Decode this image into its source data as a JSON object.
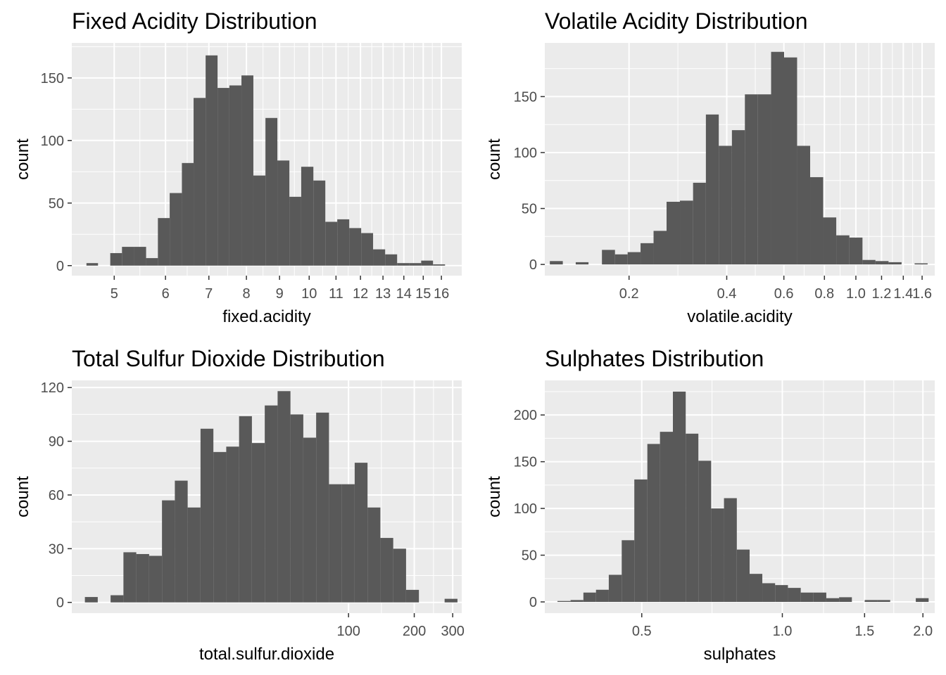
{
  "chart_data": [
    {
      "type": "bar",
      "title": "Fixed Acidity Distribution",
      "xlabel": "fixed.acidity",
      "ylabel": "count",
      "x_scale": "log10",
      "grid": true,
      "xlim": [
        4.3,
        17.2
      ],
      "ylim": [
        -8,
        178
      ],
      "x_ticks": [
        5,
        6,
        7,
        8,
        9,
        10,
        11,
        12,
        13,
        14,
        15,
        16
      ],
      "x_tick_labels": [
        "5",
        "6",
        "7",
        "8",
        "9",
        "10",
        "11",
        "12",
        "13",
        "14",
        "15",
        "16"
      ],
      "y_ticks": [
        0,
        50,
        100,
        150
      ],
      "y_tick_labels": [
        "0",
        "50",
        "100",
        "150"
      ],
      "bins": [
        {
          "x0": 4.53,
          "x1": 4.72,
          "count": 2
        },
        {
          "x0": 4.72,
          "x1": 4.93,
          "count": 0
        },
        {
          "x0": 4.93,
          "x1": 5.14,
          "count": 10
        },
        {
          "x0": 5.14,
          "x1": 5.36,
          "count": 15
        },
        {
          "x0": 5.36,
          "x1": 5.6,
          "count": 15
        },
        {
          "x0": 5.6,
          "x1": 5.84,
          "count": 6
        },
        {
          "x0": 5.84,
          "x1": 6.09,
          "count": 38
        },
        {
          "x0": 6.09,
          "x1": 6.36,
          "count": 58
        },
        {
          "x0": 6.36,
          "x1": 6.63,
          "count": 82
        },
        {
          "x0": 6.63,
          "x1": 6.92,
          "count": 134
        },
        {
          "x0": 6.92,
          "x1": 7.22,
          "count": 168
        },
        {
          "x0": 7.22,
          "x1": 7.53,
          "count": 142
        },
        {
          "x0": 7.53,
          "x1": 7.86,
          "count": 144
        },
        {
          "x0": 7.86,
          "x1": 8.2,
          "count": 152
        },
        {
          "x0": 8.2,
          "x1": 8.56,
          "count": 72
        },
        {
          "x0": 8.56,
          "x1": 8.93,
          "count": 118
        },
        {
          "x0": 8.93,
          "x1": 9.32,
          "count": 84
        },
        {
          "x0": 9.32,
          "x1": 9.72,
          "count": 55
        },
        {
          "x0": 9.72,
          "x1": 10.15,
          "count": 79
        },
        {
          "x0": 10.15,
          "x1": 10.59,
          "count": 68
        },
        {
          "x0": 10.59,
          "x1": 11.05,
          "count": 35
        },
        {
          "x0": 11.05,
          "x1": 11.53,
          "count": 37
        },
        {
          "x0": 11.53,
          "x1": 12.03,
          "count": 30
        },
        {
          "x0": 12.03,
          "x1": 12.55,
          "count": 26
        },
        {
          "x0": 12.55,
          "x1": 13.1,
          "count": 13
        },
        {
          "x0": 13.1,
          "x1": 13.67,
          "count": 9
        },
        {
          "x0": 13.67,
          "x1": 14.27,
          "count": 2
        },
        {
          "x0": 14.27,
          "x1": 14.89,
          "count": 2
        },
        {
          "x0": 14.89,
          "x1": 15.53,
          "count": 4
        },
        {
          "x0": 15.53,
          "x1": 16.21,
          "count": 1
        }
      ]
    },
    {
      "type": "bar",
      "title": "Volatile Acidity Distribution",
      "xlabel": "volatile.acidity",
      "ylabel": "count",
      "x_scale": "log10",
      "grid": true,
      "xlim": [
        0.11,
        1.75
      ],
      "ylim": [
        -10,
        198
      ],
      "x_ticks": [
        0.2,
        0.4,
        0.6,
        0.8,
        1.0,
        1.2,
        1.4,
        1.6
      ],
      "x_tick_labels": [
        "0.2",
        "0.4",
        "0.6",
        "0.8",
        "1.0",
        "1.2",
        "1.4",
        "1.6"
      ],
      "y_ticks": [
        0,
        50,
        100,
        150
      ],
      "y_tick_labels": [
        "0",
        "50",
        "100",
        "150"
      ],
      "bins": [
        {
          "x0": 0.114,
          "x1": 0.125,
          "count": 3
        },
        {
          "x0": 0.125,
          "x1": 0.137,
          "count": 0
        },
        {
          "x0": 0.137,
          "x1": 0.15,
          "count": 2
        },
        {
          "x0": 0.15,
          "x1": 0.165,
          "count": 0
        },
        {
          "x0": 0.165,
          "x1": 0.181,
          "count": 13
        },
        {
          "x0": 0.181,
          "x1": 0.198,
          "count": 9
        },
        {
          "x0": 0.198,
          "x1": 0.217,
          "count": 11
        },
        {
          "x0": 0.217,
          "x1": 0.238,
          "count": 19
        },
        {
          "x0": 0.238,
          "x1": 0.261,
          "count": 30
        },
        {
          "x0": 0.261,
          "x1": 0.287,
          "count": 56
        },
        {
          "x0": 0.287,
          "x1": 0.315,
          "count": 57
        },
        {
          "x0": 0.315,
          "x1": 0.345,
          "count": 73
        },
        {
          "x0": 0.345,
          "x1": 0.378,
          "count": 134
        },
        {
          "x0": 0.378,
          "x1": 0.415,
          "count": 106
        },
        {
          "x0": 0.415,
          "x1": 0.455,
          "count": 120
        },
        {
          "x0": 0.455,
          "x1": 0.499,
          "count": 152
        },
        {
          "x0": 0.499,
          "x1": 0.548,
          "count": 152
        },
        {
          "x0": 0.548,
          "x1": 0.601,
          "count": 190
        },
        {
          "x0": 0.601,
          "x1": 0.659,
          "count": 185
        },
        {
          "x0": 0.659,
          "x1": 0.723,
          "count": 106
        },
        {
          "x0": 0.723,
          "x1": 0.793,
          "count": 78
        },
        {
          "x0": 0.793,
          "x1": 0.87,
          "count": 42
        },
        {
          "x0": 0.87,
          "x1": 0.955,
          "count": 26
        },
        {
          "x0": 0.955,
          "x1": 1.048,
          "count": 24
        },
        {
          "x0": 1.048,
          "x1": 1.149,
          "count": 4
        },
        {
          "x0": 1.149,
          "x1": 1.261,
          "count": 3
        },
        {
          "x0": 1.261,
          "x1": 1.383,
          "count": 2
        },
        {
          "x0": 1.383,
          "x1": 1.517,
          "count": 0
        },
        {
          "x0": 1.517,
          "x1": 1.664,
          "count": 1
        }
      ]
    },
    {
      "type": "bar",
      "title": "Total Sulfur Dioxide Distribution",
      "xlabel": "total.sulfur.dioxide",
      "ylabel": "count",
      "x_scale": "log10",
      "grid": true,
      "xlim": [
        5.4,
        330
      ],
      "ylim": [
        -6,
        124
      ],
      "x_ticks": [
        100,
        200,
        300
      ],
      "x_tick_labels": [
        "100",
        "200",
        "300"
      ],
      "y_ticks": [
        0,
        30,
        60,
        90,
        120
      ],
      "y_tick_labels": [
        "0",
        "30",
        "60",
        "90",
        "120"
      ],
      "bins": [
        {
          "x0": 6.2,
          "x1": 7.1,
          "count": 3
        },
        {
          "x0": 7.1,
          "x1": 8.13,
          "count": 0
        },
        {
          "x0": 8.13,
          "x1": 9.31,
          "count": 4
        },
        {
          "x0": 9.31,
          "x1": 10.66,
          "count": 28
        },
        {
          "x0": 10.66,
          "x1": 12.21,
          "count": 27
        },
        {
          "x0": 12.21,
          "x1": 13.98,
          "count": 26
        },
        {
          "x0": 13.98,
          "x1": 16.01,
          "count": 57
        },
        {
          "x0": 16.01,
          "x1": 18.33,
          "count": 68
        },
        {
          "x0": 18.33,
          "x1": 20.99,
          "count": 53
        },
        {
          "x0": 20.99,
          "x1": 24.04,
          "count": 97
        },
        {
          "x0": 24.04,
          "x1": 27.53,
          "count": 84
        },
        {
          "x0": 27.53,
          "x1": 31.52,
          "count": 87
        },
        {
          "x0": 31.52,
          "x1": 36.09,
          "count": 104
        },
        {
          "x0": 36.09,
          "x1": 41.33,
          "count": 89
        },
        {
          "x0": 41.33,
          "x1": 47.33,
          "count": 110
        },
        {
          "x0": 47.33,
          "x1": 54.19,
          "count": 118
        },
        {
          "x0": 54.19,
          "x1": 62.06,
          "count": 105
        },
        {
          "x0": 62.06,
          "x1": 71.06,
          "count": 92
        },
        {
          "x0": 71.06,
          "x1": 81.37,
          "count": 106
        },
        {
          "x0": 81.37,
          "x1": 93.18,
          "count": 66
        },
        {
          "x0": 93.18,
          "x1": 106.7,
          "count": 66
        },
        {
          "x0": 106.7,
          "x1": 122.18,
          "count": 78
        },
        {
          "x0": 122.18,
          "x1": 139.91,
          "count": 53
        },
        {
          "x0": 139.91,
          "x1": 160.21,
          "count": 36
        },
        {
          "x0": 160.21,
          "x1": 183.45,
          "count": 30
        },
        {
          "x0": 183.45,
          "x1": 210.07,
          "count": 7
        },
        {
          "x0": 210.07,
          "x1": 240.55,
          "count": 0
        },
        {
          "x0": 240.55,
          "x1": 275.46,
          "count": 0
        },
        {
          "x0": 275.46,
          "x1": 315.43,
          "count": 2
        }
      ]
    },
    {
      "type": "bar",
      "title": "Sulphates Distribution",
      "xlabel": "sulphates",
      "ylabel": "count",
      "x_scale": "log10",
      "grid": true,
      "xlim": [
        0.31,
        2.12
      ],
      "ylim": [
        -12,
        237
      ],
      "x_ticks": [
        0.5,
        1.0,
        1.5,
        2.0
      ],
      "x_tick_labels": [
        "0.5",
        "1.0",
        "1.5",
        "2.0"
      ],
      "y_ticks": [
        0,
        50,
        100,
        150,
        200
      ],
      "y_tick_labels": [
        "0",
        "50",
        "100",
        "150",
        "200"
      ],
      "bins": [
        {
          "x0": 0.33,
          "x1": 0.352,
          "count": 1
        },
        {
          "x0": 0.352,
          "x1": 0.375,
          "count": 2
        },
        {
          "x0": 0.375,
          "x1": 0.399,
          "count": 10
        },
        {
          "x0": 0.399,
          "x1": 0.425,
          "count": 13
        },
        {
          "x0": 0.425,
          "x1": 0.453,
          "count": 29
        },
        {
          "x0": 0.453,
          "x1": 0.482,
          "count": 66
        },
        {
          "x0": 0.482,
          "x1": 0.514,
          "count": 131
        },
        {
          "x0": 0.514,
          "x1": 0.547,
          "count": 169
        },
        {
          "x0": 0.547,
          "x1": 0.583,
          "count": 182
        },
        {
          "x0": 0.583,
          "x1": 0.621,
          "count": 225
        },
        {
          "x0": 0.621,
          "x1": 0.661,
          "count": 180
        },
        {
          "x0": 0.661,
          "x1": 0.704,
          "count": 151
        },
        {
          "x0": 0.704,
          "x1": 0.75,
          "count": 100
        },
        {
          "x0": 0.75,
          "x1": 0.799,
          "count": 111
        },
        {
          "x0": 0.799,
          "x1": 0.851,
          "count": 56
        },
        {
          "x0": 0.851,
          "x1": 0.906,
          "count": 30
        },
        {
          "x0": 0.906,
          "x1": 0.965,
          "count": 20
        },
        {
          "x0": 0.965,
          "x1": 1.028,
          "count": 18
        },
        {
          "x0": 1.028,
          "x1": 1.095,
          "count": 15
        },
        {
          "x0": 1.095,
          "x1": 1.166,
          "count": 10
        },
        {
          "x0": 1.166,
          "x1": 1.242,
          "count": 10
        },
        {
          "x0": 1.242,
          "x1": 1.323,
          "count": 4
        },
        {
          "x0": 1.323,
          "x1": 1.409,
          "count": 5
        },
        {
          "x0": 1.409,
          "x1": 1.501,
          "count": 0
        },
        {
          "x0": 1.501,
          "x1": 1.598,
          "count": 2
        },
        {
          "x0": 1.598,
          "x1": 1.702,
          "count": 2
        },
        {
          "x0": 1.702,
          "x1": 1.813,
          "count": 0
        },
        {
          "x0": 1.813,
          "x1": 1.931,
          "count": 0
        },
        {
          "x0": 1.931,
          "x1": 2.057,
          "count": 4
        }
      ]
    }
  ]
}
